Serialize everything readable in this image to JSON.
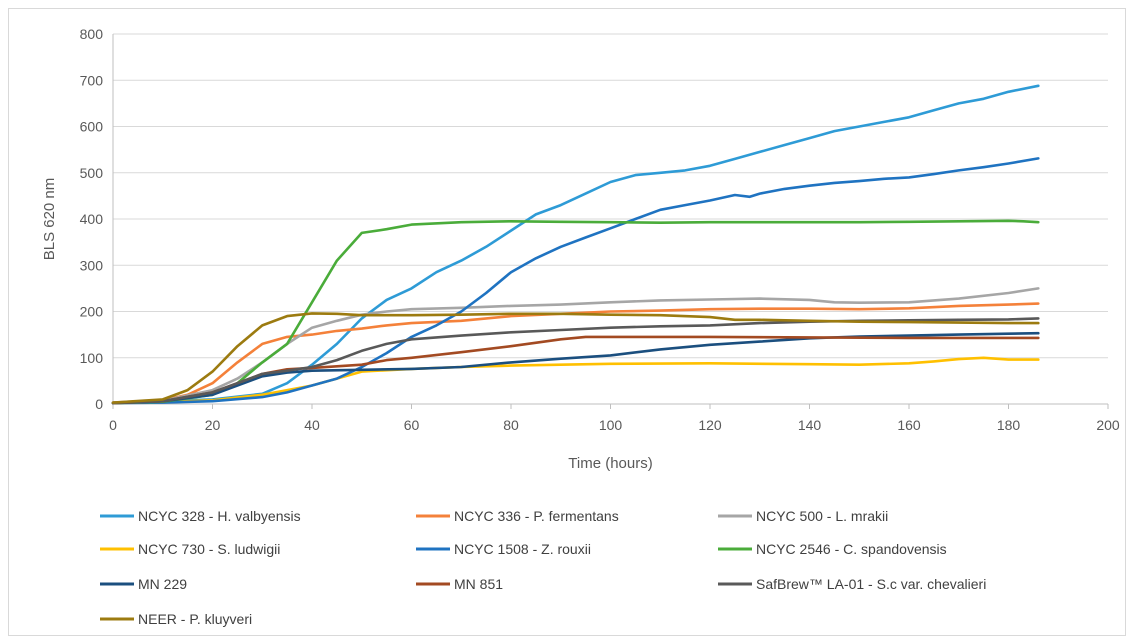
{
  "chart_data": {
    "type": "line",
    "title": "",
    "xlabel": "Time (hours)",
    "ylabel": "BLS 620 nm",
    "xlim": [
      0,
      200
    ],
    "ylim": [
      0,
      800
    ],
    "xticks": [
      "0",
      "20",
      "40",
      "60",
      "80",
      "100",
      "120",
      "140",
      "160",
      "180",
      "200"
    ],
    "yticks": [
      "0",
      "100",
      "200",
      "300",
      "400",
      "500",
      "600",
      "700",
      "800"
    ],
    "grid": "horizontal",
    "legend_position": "bottom",
    "series": [
      {
        "name": "NCYC 328 - H. valbyensis",
        "color": "#2e9bd6",
        "points": [
          [
            0,
            3
          ],
          [
            10,
            6
          ],
          [
            20,
            10
          ],
          [
            30,
            22
          ],
          [
            35,
            45
          ],
          [
            40,
            85
          ],
          [
            45,
            130
          ],
          [
            50,
            185
          ],
          [
            55,
            225
          ],
          [
            60,
            250
          ],
          [
            65,
            285
          ],
          [
            70,
            310
          ],
          [
            75,
            340
          ],
          [
            80,
            375
          ],
          [
            85,
            410
          ],
          [
            90,
            430
          ],
          [
            95,
            455
          ],
          [
            100,
            480
          ],
          [
            105,
            495
          ],
          [
            110,
            500
          ],
          [
            115,
            505
          ],
          [
            120,
            515
          ],
          [
            125,
            530
          ],
          [
            130,
            545
          ],
          [
            135,
            560
          ],
          [
            140,
            575
          ],
          [
            145,
            590
          ],
          [
            150,
            600
          ],
          [
            155,
            610
          ],
          [
            160,
            620
          ],
          [
            165,
            635
          ],
          [
            170,
            650
          ],
          [
            175,
            660
          ],
          [
            180,
            675
          ],
          [
            186,
            688
          ]
        ]
      },
      {
        "name": "NCYC 336 - P. fermentans",
        "color": "#f4813a",
        "points": [
          [
            0,
            3
          ],
          [
            10,
            8
          ],
          [
            15,
            20
          ],
          [
            20,
            45
          ],
          [
            25,
            90
          ],
          [
            30,
            130
          ],
          [
            35,
            145
          ],
          [
            40,
            150
          ],
          [
            45,
            158
          ],
          [
            50,
            163
          ],
          [
            55,
            170
          ],
          [
            60,
            175
          ],
          [
            70,
            180
          ],
          [
            80,
            190
          ],
          [
            90,
            195
          ],
          [
            100,
            200
          ],
          [
            110,
            202
          ],
          [
            120,
            205
          ],
          [
            130,
            206
          ],
          [
            140,
            206
          ],
          [
            150,
            205
          ],
          [
            160,
            207
          ],
          [
            170,
            212
          ],
          [
            180,
            215
          ],
          [
            186,
            217
          ]
        ]
      },
      {
        "name": "NCYC 500 - L. mrakii",
        "color": "#a6a6a6",
        "points": [
          [
            0,
            3
          ],
          [
            10,
            7
          ],
          [
            20,
            30
          ],
          [
            25,
            55
          ],
          [
            30,
            90
          ],
          [
            35,
            130
          ],
          [
            40,
            165
          ],
          [
            45,
            180
          ],
          [
            50,
            193
          ],
          [
            55,
            200
          ],
          [
            60,
            205
          ],
          [
            70,
            208
          ],
          [
            80,
            212
          ],
          [
            90,
            215
          ],
          [
            100,
            220
          ],
          [
            110,
            224
          ],
          [
            120,
            226
          ],
          [
            130,
            228
          ],
          [
            140,
            225
          ],
          [
            145,
            220
          ],
          [
            150,
            219
          ],
          [
            160,
            220
          ],
          [
            170,
            228
          ],
          [
            180,
            240
          ],
          [
            186,
            250
          ]
        ]
      },
      {
        "name": "NCYC 730 - S. ludwigii",
        "color": "#ffc000",
        "points": [
          [
            0,
            2
          ],
          [
            10,
            4
          ],
          [
            20,
            8
          ],
          [
            30,
            20
          ],
          [
            40,
            40
          ],
          [
            45,
            55
          ],
          [
            50,
            70
          ],
          [
            60,
            76
          ],
          [
            70,
            80
          ],
          [
            80,
            83
          ],
          [
            90,
            85
          ],
          [
            100,
            87
          ],
          [
            120,
            88
          ],
          [
            140,
            86
          ],
          [
            150,
            85
          ],
          [
            160,
            88
          ],
          [
            165,
            92
          ],
          [
            170,
            97
          ],
          [
            175,
            100
          ],
          [
            180,
            96
          ],
          [
            186,
            96
          ]
        ]
      },
      {
        "name": "NCYC 1508 - Z. rouxii",
        "color": "#1f73c1",
        "points": [
          [
            0,
            2
          ],
          [
            10,
            3
          ],
          [
            20,
            6
          ],
          [
            30,
            15
          ],
          [
            35,
            25
          ],
          [
            40,
            40
          ],
          [
            45,
            55
          ],
          [
            50,
            80
          ],
          [
            55,
            110
          ],
          [
            60,
            145
          ],
          [
            65,
            170
          ],
          [
            70,
            200
          ],
          [
            75,
            240
          ],
          [
            80,
            285
          ],
          [
            85,
            315
          ],
          [
            90,
            340
          ],
          [
            95,
            360
          ],
          [
            100,
            380
          ],
          [
            105,
            400
          ],
          [
            110,
            420
          ],
          [
            115,
            430
          ],
          [
            120,
            440
          ],
          [
            125,
            452
          ],
          [
            128,
            448
          ],
          [
            130,
            455
          ],
          [
            135,
            465
          ],
          [
            140,
            472
          ],
          [
            145,
            478
          ],
          [
            150,
            482
          ],
          [
            155,
            487
          ],
          [
            160,
            490
          ],
          [
            165,
            497
          ],
          [
            170,
            505
          ],
          [
            175,
            512
          ],
          [
            180,
            520
          ],
          [
            186,
            531
          ]
        ]
      },
      {
        "name": "NCYC 2546 - C. spandovensis",
        "color": "#4aac3a",
        "points": [
          [
            0,
            2
          ],
          [
            10,
            5
          ],
          [
            20,
            20
          ],
          [
            25,
            45
          ],
          [
            30,
            90
          ],
          [
            35,
            130
          ],
          [
            40,
            220
          ],
          [
            45,
            310
          ],
          [
            50,
            370
          ],
          [
            55,
            378
          ],
          [
            60,
            388
          ],
          [
            70,
            393
          ],
          [
            80,
            395
          ],
          [
            90,
            394
          ],
          [
            100,
            393
          ],
          [
            110,
            392
          ],
          [
            120,
            393
          ],
          [
            130,
            393
          ],
          [
            140,
            393
          ],
          [
            150,
            393
          ],
          [
            160,
            394
          ],
          [
            170,
            395
          ],
          [
            180,
            396
          ],
          [
            183,
            395
          ],
          [
            186,
            393
          ]
        ]
      },
      {
        "name": "MN 229",
        "color": "#1b4f7f",
        "points": [
          [
            0,
            2
          ],
          [
            10,
            6
          ],
          [
            20,
            20
          ],
          [
            25,
            40
          ],
          [
            30,
            60
          ],
          [
            35,
            68
          ],
          [
            40,
            72
          ],
          [
            50,
            74
          ],
          [
            60,
            76
          ],
          [
            70,
            80
          ],
          [
            80,
            90
          ],
          [
            90,
            98
          ],
          [
            100,
            105
          ],
          [
            110,
            118
          ],
          [
            120,
            128
          ],
          [
            130,
            135
          ],
          [
            140,
            142
          ],
          [
            150,
            146
          ],
          [
            160,
            148
          ],
          [
            170,
            150
          ],
          [
            180,
            152
          ],
          [
            186,
            153
          ]
        ]
      },
      {
        "name": "MN 851",
        "color": "#a34a22",
        "points": [
          [
            0,
            2
          ],
          [
            10,
            6
          ],
          [
            20,
            25
          ],
          [
            25,
            45
          ],
          [
            30,
            65
          ],
          [
            35,
            75
          ],
          [
            40,
            78
          ],
          [
            50,
            85
          ],
          [
            55,
            95
          ],
          [
            60,
            100
          ],
          [
            70,
            112
          ],
          [
            80,
            125
          ],
          [
            90,
            140
          ],
          [
            95,
            145
          ],
          [
            100,
            145
          ],
          [
            120,
            145
          ],
          [
            140,
            144
          ],
          [
            160,
            143
          ],
          [
            180,
            143
          ],
          [
            186,
            143
          ]
        ]
      },
      {
        "name": "SafBrew™ LA-01 - S.c var. chevalieri",
        "color": "#595959",
        "points": [
          [
            0,
            2
          ],
          [
            10,
            6
          ],
          [
            20,
            25
          ],
          [
            25,
            45
          ],
          [
            30,
            65
          ],
          [
            35,
            72
          ],
          [
            40,
            80
          ],
          [
            45,
            95
          ],
          [
            50,
            115
          ],
          [
            55,
            130
          ],
          [
            60,
            140
          ],
          [
            70,
            148
          ],
          [
            80,
            155
          ],
          [
            90,
            160
          ],
          [
            100,
            165
          ],
          [
            110,
            168
          ],
          [
            120,
            170
          ],
          [
            130,
            175
          ],
          [
            140,
            178
          ],
          [
            150,
            180
          ],
          [
            160,
            181
          ],
          [
            170,
            182
          ],
          [
            180,
            183
          ],
          [
            186,
            185
          ]
        ]
      },
      {
        "name": "NEER - P. kluyveri",
        "color": "#9c7b10",
        "points": [
          [
            0,
            3
          ],
          [
            10,
            10
          ],
          [
            15,
            30
          ],
          [
            20,
            70
          ],
          [
            25,
            125
          ],
          [
            30,
            170
          ],
          [
            35,
            190
          ],
          [
            40,
            196
          ],
          [
            45,
            195
          ],
          [
            50,
            192
          ],
          [
            60,
            192
          ],
          [
            70,
            193
          ],
          [
            80,
            195
          ],
          [
            90,
            195
          ],
          [
            100,
            193
          ],
          [
            110,
            192
          ],
          [
            120,
            188
          ],
          [
            125,
            182
          ],
          [
            130,
            182
          ],
          [
            140,
            180
          ],
          [
            150,
            178
          ],
          [
            160,
            177
          ],
          [
            170,
            176
          ],
          [
            180,
            175
          ],
          [
            186,
            175
          ]
        ]
      }
    ]
  }
}
